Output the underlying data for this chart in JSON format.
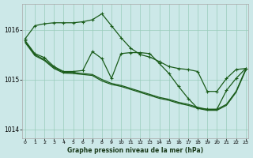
{
  "background_color": "#cce8e8",
  "grid_color": "#99ccbb",
  "line_color": "#1a5c1a",
  "xlabel": "Graphe pression niveau de la mer (hPa)",
  "xlim": [
    -0.3,
    23.3
  ],
  "ylim": [
    1013.82,
    1016.52
  ],
  "yticks": [
    1014,
    1015,
    1016
  ],
  "xticks": [
    0,
    1,
    2,
    3,
    4,
    5,
    6,
    7,
    8,
    9,
    10,
    11,
    12,
    13,
    14,
    15,
    16,
    17,
    18,
    19,
    20,
    21,
    22,
    23
  ],
  "line1_x": [
    0,
    1,
    2,
    3,
    4,
    5,
    6,
    7,
    8,
    9,
    10,
    11,
    12,
    13,
    14,
    15,
    16,
    17,
    18,
    19,
    20,
    21,
    22,
    23
  ],
  "line1_y": [
    1015.82,
    1016.08,
    1016.12,
    1016.14,
    1016.14,
    1016.14,
    1016.16,
    1016.2,
    1016.32,
    1016.08,
    1015.84,
    1015.63,
    1015.5,
    1015.45,
    1015.36,
    1015.26,
    1015.22,
    1015.2,
    1015.16,
    1014.76,
    1014.76,
    1015.02,
    1015.2,
    1015.22
  ],
  "line2_x": [
    0,
    1,
    2,
    3,
    4,
    5,
    6,
    7,
    8,
    9,
    10,
    11,
    12,
    13,
    14,
    15,
    16,
    17,
    18,
    19,
    20,
    21,
    22,
    23
  ],
  "line2_y": [
    1015.78,
    1015.52,
    1015.44,
    1015.26,
    1015.16,
    1015.16,
    1015.18,
    1015.56,
    1015.42,
    1015.02,
    1015.52,
    1015.54,
    1015.54,
    1015.52,
    1015.32,
    1015.12,
    1014.86,
    1014.62,
    1014.42,
    1014.4,
    1014.4,
    1014.78,
    1015.02,
    1015.22
  ],
  "line3_x": [
    0,
    1,
    2,
    3,
    4,
    5,
    6,
    7,
    8,
    9,
    10,
    11,
    12,
    13,
    14,
    15,
    16,
    17,
    18,
    19,
    20,
    21,
    22,
    23
  ],
  "line3_y": [
    1015.76,
    1015.5,
    1015.4,
    1015.24,
    1015.15,
    1015.14,
    1015.12,
    1015.1,
    1015.0,
    1014.92,
    1014.88,
    1014.82,
    1014.76,
    1014.7,
    1014.64,
    1014.6,
    1014.54,
    1014.5,
    1014.44,
    1014.4,
    1014.4,
    1014.5,
    1014.76,
    1015.2
  ],
  "line4_x": [
    0,
    1,
    2,
    3,
    4,
    5,
    6,
    7,
    8,
    9,
    10,
    11,
    12,
    13,
    14,
    15,
    16,
    17,
    18,
    19,
    20,
    21,
    22,
    23
  ],
  "line4_y": [
    1015.74,
    1015.48,
    1015.38,
    1015.22,
    1015.13,
    1015.12,
    1015.1,
    1015.08,
    1014.97,
    1014.9,
    1014.86,
    1014.8,
    1014.74,
    1014.68,
    1014.62,
    1014.58,
    1014.52,
    1014.48,
    1014.42,
    1014.38,
    1014.38,
    1014.48,
    1014.74,
    1015.18
  ]
}
